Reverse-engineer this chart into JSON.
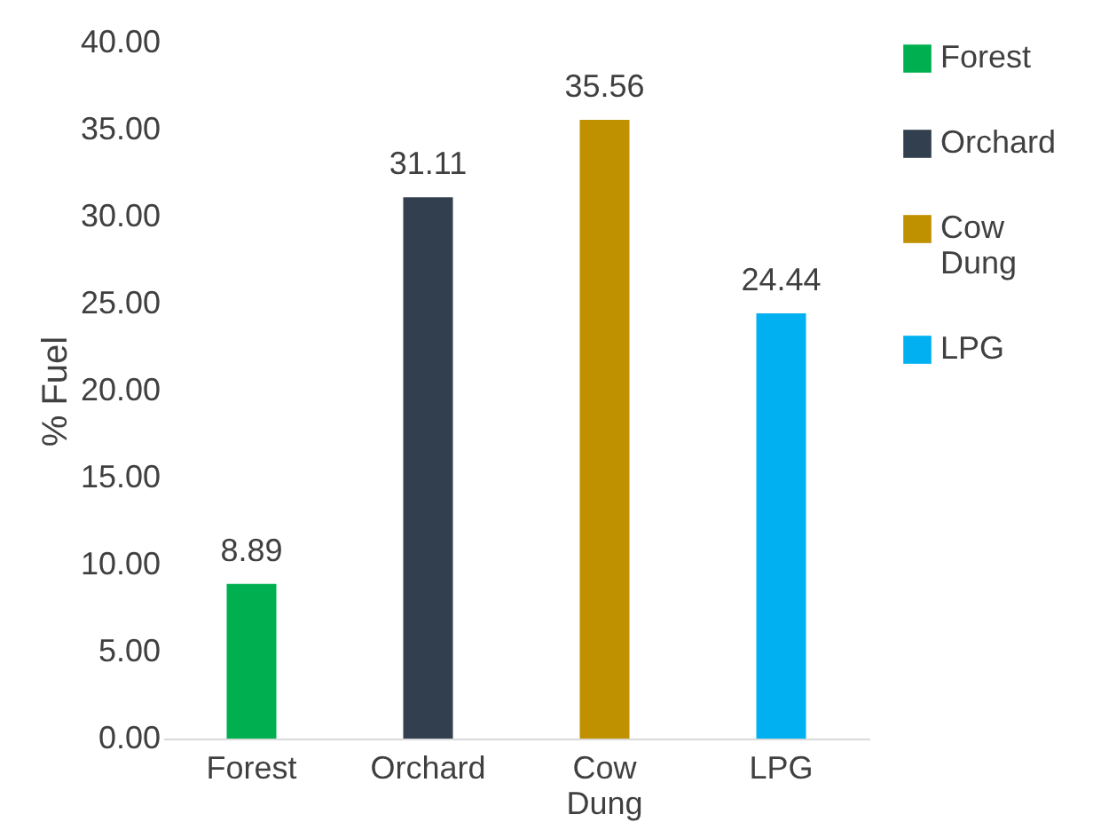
{
  "chart_data": {
    "type": "bar",
    "ylabel": "% Fuel",
    "categories": [
      "Forest",
      "Orchard",
      "Cow Dung",
      "LPG"
    ],
    "series": [
      {
        "name": "Forest",
        "color": "#00b050",
        "values": [
          8.89,
          null,
          null,
          null
        ]
      },
      {
        "name": "Orchard",
        "color": "#323f4f",
        "values": [
          null,
          31.11,
          null,
          null
        ]
      },
      {
        "name": "Cow Dung",
        "color": "#bf9000",
        "values": [
          null,
          null,
          35.56,
          null
        ]
      },
      {
        "name": "LPG",
        "color": "#00b0f0",
        "values": [
          null,
          null,
          null,
          24.44
        ]
      }
    ],
    "ylim": [
      0,
      40
    ],
    "yticks": [
      {
        "value": 0,
        "label": "0.00"
      },
      {
        "value": 5,
        "label": "5.00"
      },
      {
        "value": 10,
        "label": "10.00"
      },
      {
        "value": 15,
        "label": "15.00"
      },
      {
        "value": 20,
        "label": "20.00"
      },
      {
        "value": 25,
        "label": "25.00"
      },
      {
        "value": 30,
        "label": "30.00"
      },
      {
        "value": 35,
        "label": "35.00"
      },
      {
        "value": 40,
        "label": "40.00"
      }
    ],
    "data_labels": true,
    "grid": false,
    "legend": "right"
  }
}
